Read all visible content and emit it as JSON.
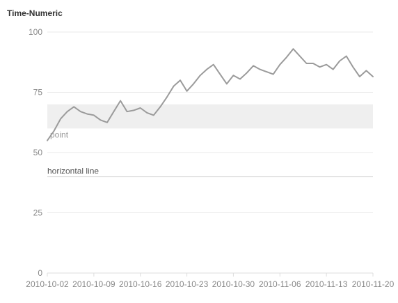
{
  "chart_data": {
    "type": "line",
    "title": "Time-Numeric",
    "xlabel": "",
    "ylabel": "",
    "ylim": [
      0,
      100
    ],
    "yticks": [
      0,
      25,
      50,
      75,
      100
    ],
    "xlim": [
      "2010-10-02",
      "2010-11-20"
    ],
    "xticks": [
      "2010-10-02",
      "2010-10-09",
      "2010-10-16",
      "2010-10-23",
      "2010-10-30",
      "2010-11-06",
      "2010-11-13",
      "2010-11-20"
    ],
    "grid": "horizontal",
    "colors": {
      "line": "#9b9b9b",
      "band": "#efefef",
      "grid": "#e8e8e8",
      "refline": "#dddddd"
    },
    "series": [
      {
        "x": [
          "2010-10-02",
          "2010-10-03",
          "2010-10-04",
          "2010-10-05",
          "2010-10-06",
          "2010-10-07",
          "2010-10-08",
          "2010-10-09",
          "2010-10-10",
          "2010-10-11",
          "2010-10-12",
          "2010-10-13",
          "2010-10-14",
          "2010-10-15",
          "2010-10-16",
          "2010-10-17",
          "2010-10-18",
          "2010-10-19",
          "2010-10-20",
          "2010-10-21",
          "2010-10-22",
          "2010-10-23",
          "2010-10-24",
          "2010-10-25",
          "2010-10-26",
          "2010-10-27",
          "2010-10-28",
          "2010-10-29",
          "2010-10-30",
          "2010-10-31",
          "2010-11-01",
          "2010-11-02",
          "2010-11-03",
          "2010-11-04",
          "2010-11-05",
          "2010-11-06",
          "2010-11-07",
          "2010-11-08",
          "2010-11-09",
          "2010-11-10",
          "2010-11-11",
          "2010-11-12",
          "2010-11-13",
          "2010-11-14",
          "2010-11-15",
          "2010-11-16",
          "2010-11-17",
          "2010-11-18",
          "2010-11-19",
          "2010-11-20"
        ],
        "y": [
          55,
          59,
          64,
          67,
          69,
          67,
          66,
          65.5,
          63.5,
          62.5,
          67,
          71.5,
          67,
          67.5,
          68.5,
          66.5,
          65.5,
          69,
          73,
          77.5,
          80,
          75.5,
          78.5,
          82,
          84.5,
          86.5,
          82.5,
          78.5,
          82,
          80.5,
          83,
          86,
          84.5,
          83.5,
          82.5,
          86.5,
          89.5,
          93,
          90,
          87,
          87,
          85.5,
          86.5,
          84.5,
          88,
          90,
          85.5,
          81.5,
          84,
          81.5
        ]
      }
    ],
    "annotations": {
      "region": {
        "from": 60,
        "to": 70
      },
      "hline": {
        "y": 40,
        "label": "horizontal line"
      },
      "point": {
        "x": "2010-10-02",
        "y": 55,
        "label": "point"
      }
    }
  }
}
